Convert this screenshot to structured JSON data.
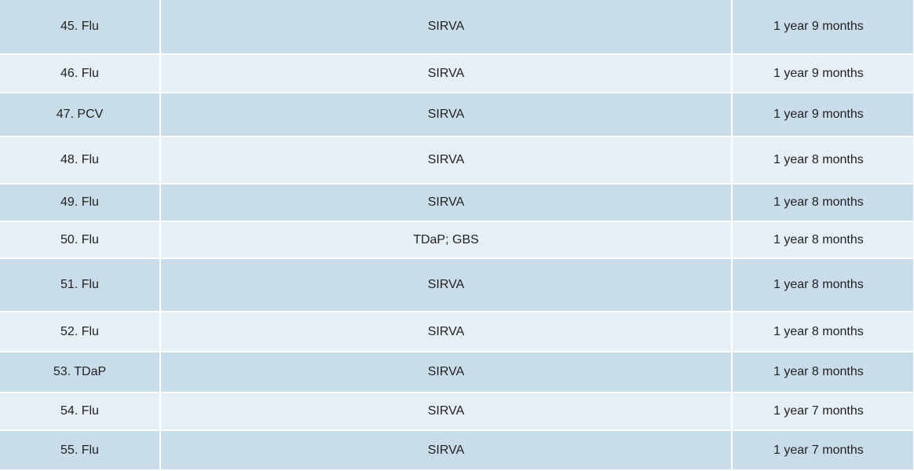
{
  "table": {
    "rows": [
      [
        "45. Flu",
        "SIRVA",
        "1 year 9 months"
      ],
      [
        "46. Flu",
        "SIRVA",
        "1 year 9 months"
      ],
      [
        "47. PCV",
        "SIRVA",
        "1 year 9 months"
      ],
      [
        "48. Flu",
        "SIRVA",
        "1 year 8 months"
      ],
      [
        "49. Flu",
        "SIRVA",
        "1 year 8 months"
      ],
      [
        "50. Flu",
        "TDaP; GBS",
        "1 year 8 months"
      ],
      [
        "51. Flu",
        "SIRVA",
        "1 year 8 months"
      ],
      [
        "52. Flu",
        "SIRVA",
        "1 year 8 months"
      ],
      [
        "53. TDaP",
        "SIRVA",
        "1 year 8 months"
      ],
      [
        "54. Flu",
        "SIRVA",
        "1 year 7 months"
      ],
      [
        "55. Flu",
        "SIRVA",
        "1 year 7 months"
      ]
    ]
  }
}
